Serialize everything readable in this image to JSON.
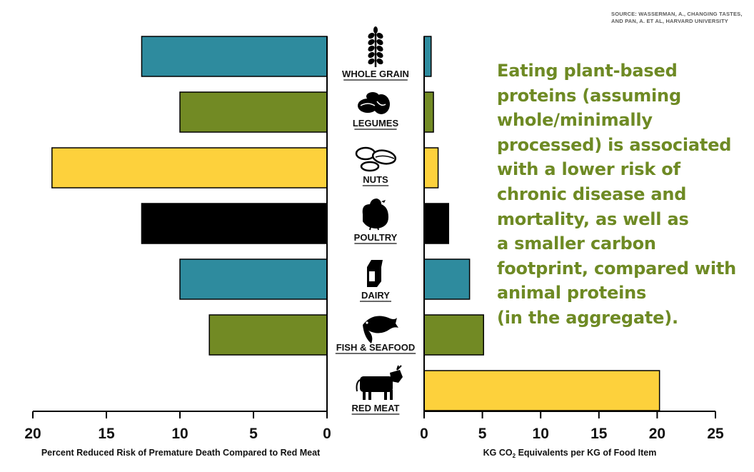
{
  "source_note": "SOURCE: WASSERMAN, A., CHANGING TASTES, AND PAN, A. ET AL, HARVARD UNIVERSITY",
  "headline": "Eating plant-based\nproteins (assuming\nwhole/minimally\nprocessed) is associated\nwith a lower risk of\nchronic disease and\nmortality, as well as\na smaller carbon\nfootprint, compared with\nanimal proteins\n(in the aggregate).",
  "colors": {
    "teal": "#2e8b9e",
    "olive": "#728a24",
    "yellow": "#fdd13c",
    "black": "#000000",
    "headline": "#6e8a24"
  },
  "chart_data": [
    {
      "type": "bar",
      "orientation": "horizontal",
      "direction": "right-to-left",
      "xlabel": "Percent Reduced Risk of Premature Death Compared to Red Meat",
      "xlim": [
        0,
        20
      ],
      "ticks": [
        "0",
        "5",
        "10",
        "15",
        "20"
      ],
      "categories": [
        "WHOLE GRAIN",
        "LEGUMES",
        "NUTS",
        "POULTRY",
        "DAIRY",
        "FISH & SEAFOOD",
        "RED MEAT"
      ],
      "values": [
        12.6,
        10,
        18.7,
        12.6,
        10,
        8,
        null
      ],
      "colors": [
        "teal",
        "olive",
        "yellow",
        "black",
        "teal",
        "olive",
        null
      ]
    },
    {
      "type": "bar",
      "orientation": "horizontal",
      "xlabel_prefix": "KG CO",
      "xlabel_sub": "2",
      "xlabel_suffix": " Equivalents per KG of Food Item",
      "xlim": [
        0,
        25
      ],
      "ticks": [
        "0",
        "5",
        "10",
        "15",
        "20",
        "25"
      ],
      "categories": [
        "WHOLE GRAIN",
        "LEGUMES",
        "NUTS",
        "POULTRY",
        "DAIRY",
        "FISH & SEAFOOD",
        "RED MEAT"
      ],
      "values": [
        0.6,
        0.8,
        1.2,
        2.1,
        3.9,
        5.1,
        20.2
      ],
      "colors": [
        "teal",
        "olive",
        "yellow",
        "black",
        "teal",
        "olive",
        "yellow"
      ]
    }
  ],
  "icons": [
    "wheat-icon",
    "legumes-icon",
    "nuts-icon",
    "chicken-icon",
    "milk-carton-icon",
    "fish-icon",
    "cow-icon"
  ]
}
